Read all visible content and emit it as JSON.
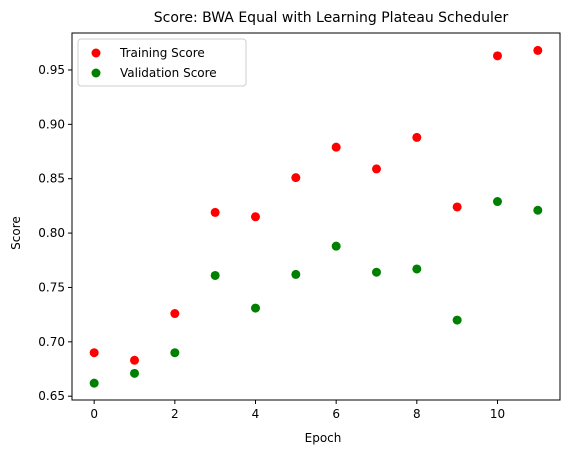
{
  "chart_data": {
    "type": "scatter",
    "title": "Score: BWA Equal with Learning Plateau Scheduler",
    "xlabel": "Epoch",
    "ylabel": "Score",
    "xlim": [
      -0.55,
      11.55
    ],
    "ylim": [
      0.6465,
      0.984
    ],
    "xticks": [
      0,
      2,
      4,
      6,
      8,
      10
    ],
    "xtick_labels": [
      "0",
      "2",
      "4",
      "6",
      "8",
      "10"
    ],
    "yticks": [
      0.65,
      0.7,
      0.75,
      0.8,
      0.85,
      0.9,
      0.95
    ],
    "ytick_labels": [
      "0.65",
      "0.70",
      "0.75",
      "0.80",
      "0.85",
      "0.90",
      "0.95"
    ],
    "grid": false,
    "legend_position": "top-left",
    "series": [
      {
        "name": "Training Score",
        "color": "#ff0000",
        "x": [
          0,
          1,
          2,
          3,
          4,
          5,
          6,
          7,
          8,
          9,
          10,
          11
        ],
        "y": [
          0.69,
          0.683,
          0.726,
          0.819,
          0.815,
          0.851,
          0.879,
          0.859,
          0.888,
          0.824,
          0.963,
          0.968
        ]
      },
      {
        "name": "Validation Score",
        "color": "#008000",
        "x": [
          0,
          1,
          2,
          3,
          4,
          5,
          6,
          7,
          8,
          9,
          10,
          11
        ],
        "y": [
          0.662,
          0.671,
          0.69,
          0.761,
          0.731,
          0.762,
          0.788,
          0.764,
          0.767,
          0.72,
          0.829,
          0.821
        ]
      }
    ]
  }
}
